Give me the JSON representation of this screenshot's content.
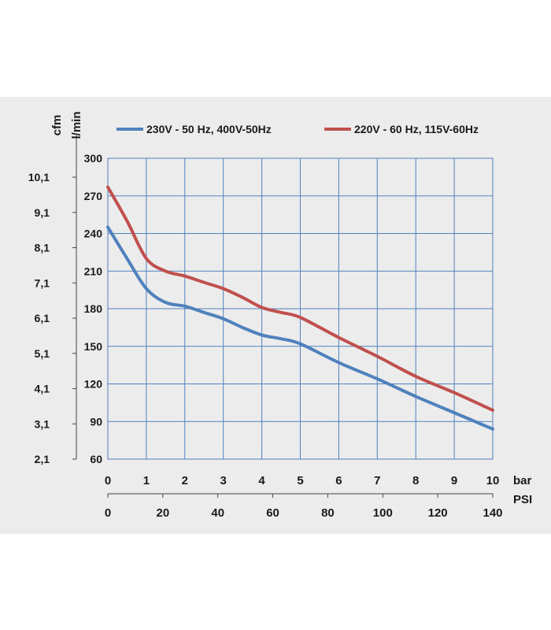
{
  "chart_data": {
    "type": "line",
    "left_axis_outer_label": "cfm",
    "left_axis_inner_label": "l/min",
    "cfm_ticks": [
      "10,1",
      "9,1",
      "8,1",
      "7,1",
      "6,1",
      "5,1",
      "4,1",
      "3,1",
      "2,1"
    ],
    "lmin_ticks": [
      300,
      270,
      240,
      210,
      180,
      150,
      120,
      90,
      60
    ],
    "ylim": [
      60,
      300
    ],
    "bar_axis_label": "bar",
    "bar_ticks": [
      0,
      1,
      2,
      3,
      4,
      5,
      6,
      7,
      8,
      9,
      10
    ],
    "xlim": [
      0,
      10
    ],
    "psi_axis_label": "PSI",
    "psi_ticks": [
      0,
      20,
      40,
      60,
      80,
      100,
      120,
      140
    ],
    "psi_max": 140,
    "grid": true,
    "legend_position": "top",
    "series": [
      {
        "name": "230V - 50 Hz, 400V-50Hz",
        "color": "#4f81bd",
        "x": [
          0,
          0.5,
          1,
          1.5,
          2,
          2.5,
          3,
          3.5,
          4,
          4.5,
          5,
          6,
          7,
          8,
          9,
          10
        ],
        "y": [
          245,
          220,
          196,
          185,
          182,
          177,
          172,
          165,
          159,
          156,
          152,
          137,
          124,
          110,
          97,
          84
        ]
      },
      {
        "name": "220V - 60 Hz, 115V-60Hz",
        "color": "#c0504d",
        "x": [
          0,
          0.5,
          1,
          1.5,
          2,
          2.5,
          3,
          3.5,
          4,
          4.5,
          5,
          6,
          7,
          8,
          9,
          10
        ],
        "y": [
          277,
          250,
          220,
          210,
          206,
          201,
          196,
          189,
          181,
          177,
          173,
          157,
          142,
          126,
          113,
          99
        ]
      }
    ]
  }
}
